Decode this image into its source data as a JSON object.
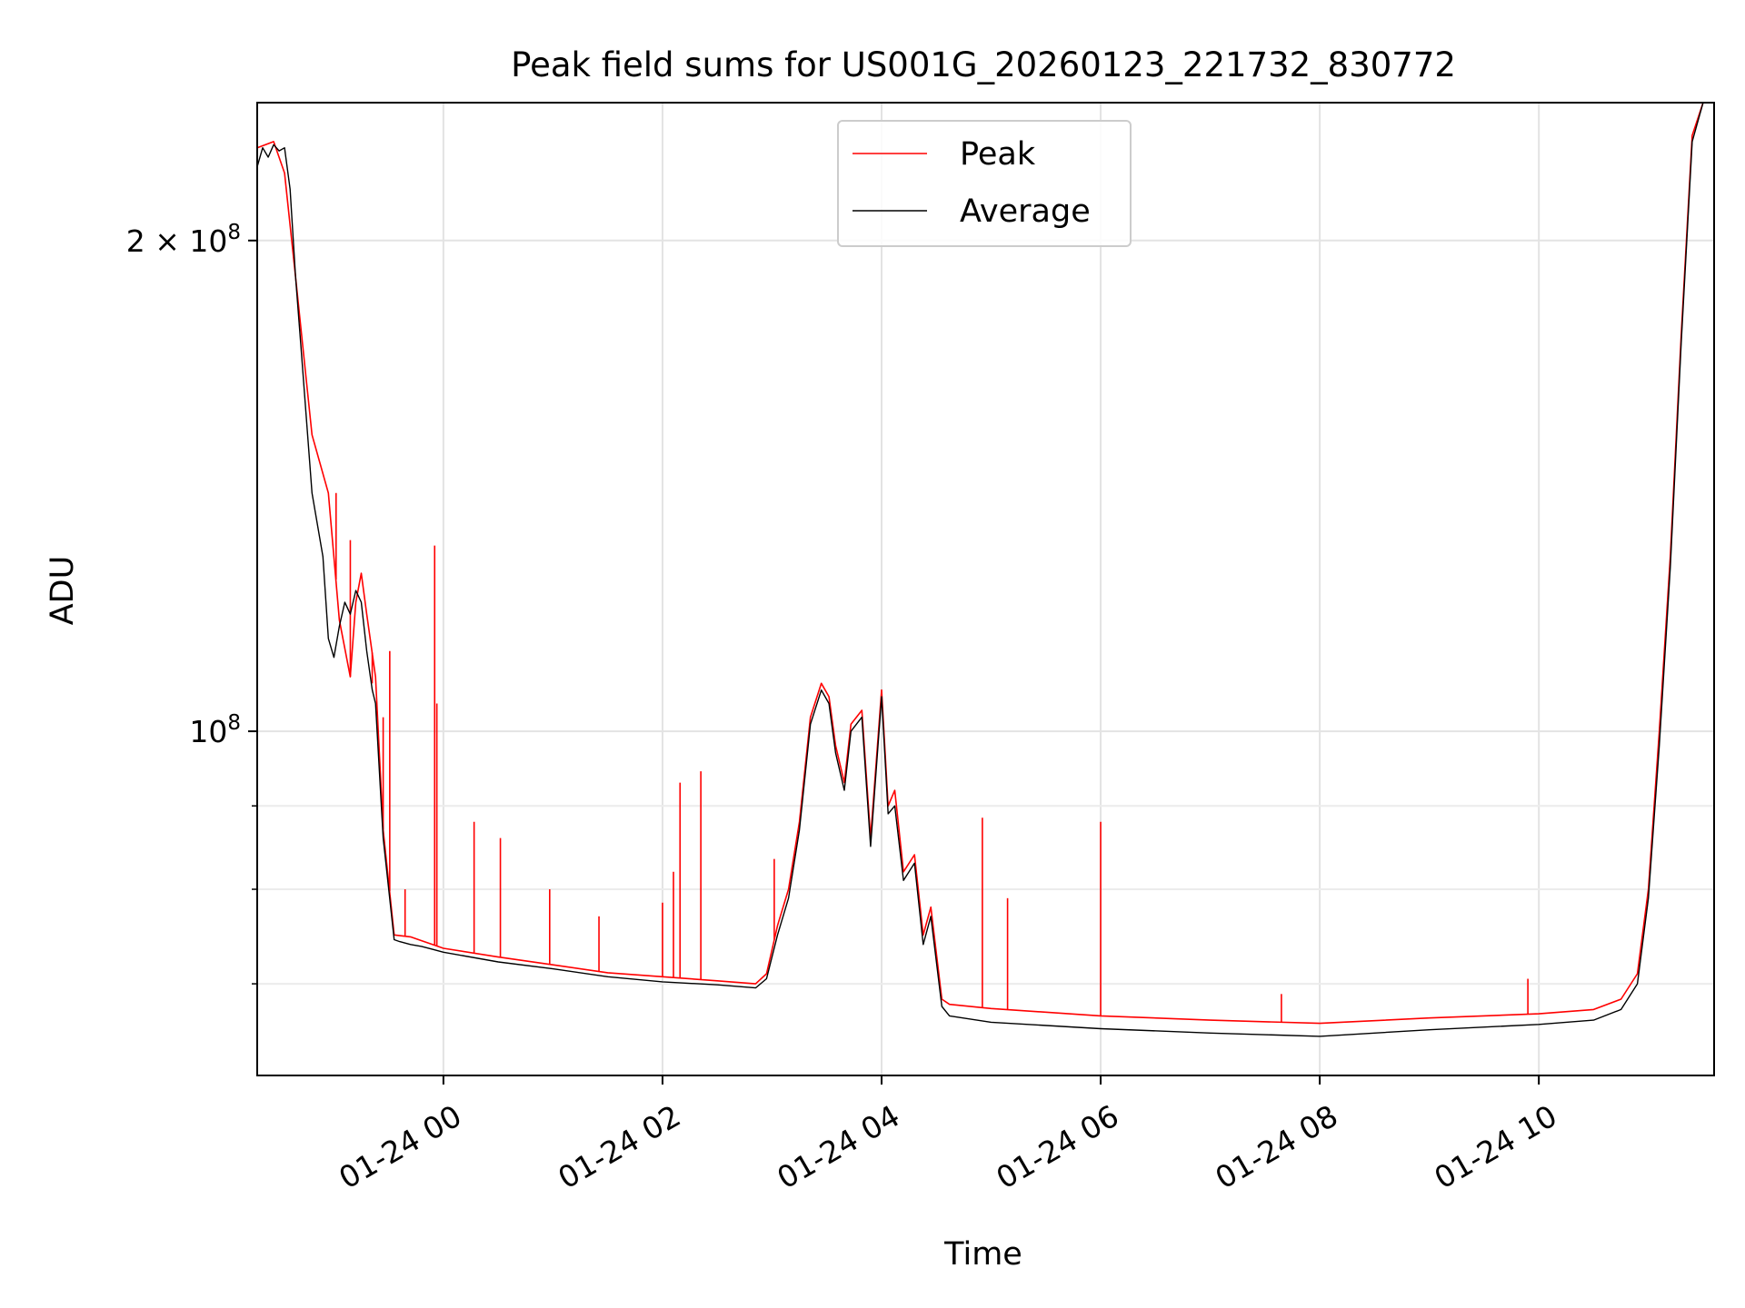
{
  "chart_data": {
    "type": "line",
    "title": "Peak field sums for US001G_20260123_221732_830772",
    "xlabel": "Time",
    "ylabel": "ADU",
    "yscale": "log",
    "grid": true,
    "legend_position": "top-center",
    "x_unit": "hours since 2026-01-24 00:00",
    "xlim": [
      -1.7,
      11.6
    ],
    "ylim": [
      61500000,
      243000000
    ],
    "x_ticks": [
      {
        "value": 0,
        "label": "01-24 00"
      },
      {
        "value": 2,
        "label": "01-24 02"
      },
      {
        "value": 4,
        "label": "01-24 04"
      },
      {
        "value": 6,
        "label": "01-24 06"
      },
      {
        "value": 8,
        "label": "01-24 08"
      },
      {
        "value": 10,
        "label": "01-24 10"
      }
    ],
    "y_major_ticks": [
      {
        "value": 100000000,
        "base": "10",
        "exp": "8",
        "coef": ""
      },
      {
        "value": 200000000,
        "base": "10",
        "exp": "8",
        "coef": "2 × "
      }
    ],
    "y_minor_ticks": [
      70000000,
      80000000,
      90000000
    ],
    "series": [
      {
        "name": "Peak",
        "color": "#ff0000",
        "x": [
          -1.7,
          -1.55,
          -1.45,
          -1.35,
          -1.2,
          -1.05,
          -0.95,
          -0.85,
          -0.8,
          -0.75,
          -0.7,
          -0.62,
          -0.55,
          -0.45,
          -0.3,
          -0.2,
          -0.1,
          0.0,
          0.5,
          1.0,
          1.5,
          2.0,
          2.5,
          2.85,
          2.95,
          3.05,
          3.15,
          3.25,
          3.35,
          3.45,
          3.52,
          3.58,
          3.66,
          3.72,
          3.82,
          3.9,
          4.0,
          4.06,
          4.12,
          4.2,
          4.3,
          4.38,
          4.45,
          4.55,
          4.62,
          5.0,
          6.0,
          7.0,
          8.0,
          9.0,
          10.0,
          10.5,
          10.75,
          10.9,
          11.0,
          11.1,
          11.2,
          11.3,
          11.4,
          11.5,
          11.6
        ],
        "y": [
          228000000,
          230000000,
          220000000,
          190000000,
          152000000,
          140000000,
          117000000,
          108000000,
          120000000,
          125000000,
          118000000,
          108000000,
          87000000,
          75000000,
          74800000,
          74400000,
          74000000,
          73600000,
          72700000,
          71900000,
          71100000,
          70700000,
          70300000,
          70000000,
          71000000,
          76000000,
          80000000,
          88000000,
          102000000,
          107000000,
          105000000,
          98000000,
          93000000,
          101000000,
          103000000,
          86000000,
          106000000,
          90000000,
          92000000,
          82000000,
          84000000,
          75000000,
          78000000,
          68500000,
          68000000,
          67600000,
          66900000,
          66500000,
          66200000,
          66700000,
          67100000,
          67500000,
          68500000,
          71000000,
          80000000,
          100000000,
          128000000,
          175000000,
          232000000,
          243000000,
          243000000
        ],
        "spikes": [
          {
            "x": -0.98,
            "y": 140000000
          },
          {
            "x": -0.85,
            "y": 131000000
          },
          {
            "x": -0.65,
            "y": 107000000
          },
          {
            "x": -0.55,
            "y": 102000000
          },
          {
            "x": -0.49,
            "y": 112000000
          },
          {
            "x": -0.35,
            "y": 80000000
          },
          {
            "x": -0.08,
            "y": 130000000
          },
          {
            "x": -0.06,
            "y": 104000000
          },
          {
            "x": 0.28,
            "y": 88000000
          },
          {
            "x": 0.52,
            "y": 86000000
          },
          {
            "x": 0.97,
            "y": 80000000
          },
          {
            "x": 1.42,
            "y": 77000000
          },
          {
            "x": 2.0,
            "y": 78500000
          },
          {
            "x": 2.1,
            "y": 82000000
          },
          {
            "x": 2.16,
            "y": 93000000
          },
          {
            "x": 2.35,
            "y": 94500000
          },
          {
            "x": 3.02,
            "y": 83500000
          },
          {
            "x": 4.92,
            "y": 88500000
          },
          {
            "x": 5.15,
            "y": 79000000
          },
          {
            "x": 6.0,
            "y": 88000000
          },
          {
            "x": 7.65,
            "y": 69000000
          },
          {
            "x": 9.9,
            "y": 70500000
          }
        ]
      },
      {
        "name": "Average",
        "color": "#000000",
        "x": [
          -1.7,
          -1.65,
          -1.6,
          -1.55,
          -1.5,
          -1.45,
          -1.4,
          -1.35,
          -1.3,
          -1.2,
          -1.1,
          -1.05,
          -1.0,
          -0.95,
          -0.9,
          -0.85,
          -0.8,
          -0.75,
          -0.7,
          -0.65,
          -0.62,
          -0.55,
          -0.45,
          -0.4,
          -0.3,
          -0.2,
          -0.1,
          0.0,
          0.5,
          1.0,
          1.5,
          2.0,
          2.5,
          2.85,
          2.95,
          3.05,
          3.15,
          3.25,
          3.35,
          3.45,
          3.52,
          3.58,
          3.66,
          3.72,
          3.82,
          3.9,
          4.0,
          4.06,
          4.12,
          4.2,
          4.3,
          4.38,
          4.45,
          4.55,
          4.62,
          5.0,
          6.0,
          7.0,
          8.0,
          9.0,
          10.0,
          10.5,
          10.75,
          10.9,
          11.0,
          11.1,
          11.2,
          11.3,
          11.4,
          11.5,
          11.6
        ],
        "y": [
          222000000,
          228000000,
          225000000,
          229000000,
          227000000,
          228000000,
          215000000,
          190000000,
          172000000,
          140000000,
          128000000,
          114000000,
          111000000,
          116000000,
          120000000,
          118000000,
          122000000,
          120000000,
          112000000,
          106000000,
          104000000,
          86000000,
          74500000,
          74300000,
          74000000,
          73800000,
          73500000,
          73200000,
          72200000,
          71500000,
          70700000,
          70200000,
          69900000,
          69600000,
          70500000,
          75000000,
          79000000,
          87000000,
          101000000,
          106000000,
          104000000,
          97000000,
          92000000,
          100000000,
          102000000,
          85000000,
          105000000,
          89000000,
          90000000,
          81000000,
          83000000,
          74000000,
          77000000,
          67800000,
          66900000,
          66300000,
          65700000,
          65300000,
          65000000,
          65600000,
          66100000,
          66500000,
          67500000,
          70000000,
          79000000,
          98000000,
          126000000,
          173000000,
          230000000,
          243000000,
          243000000
        ]
      }
    ]
  }
}
